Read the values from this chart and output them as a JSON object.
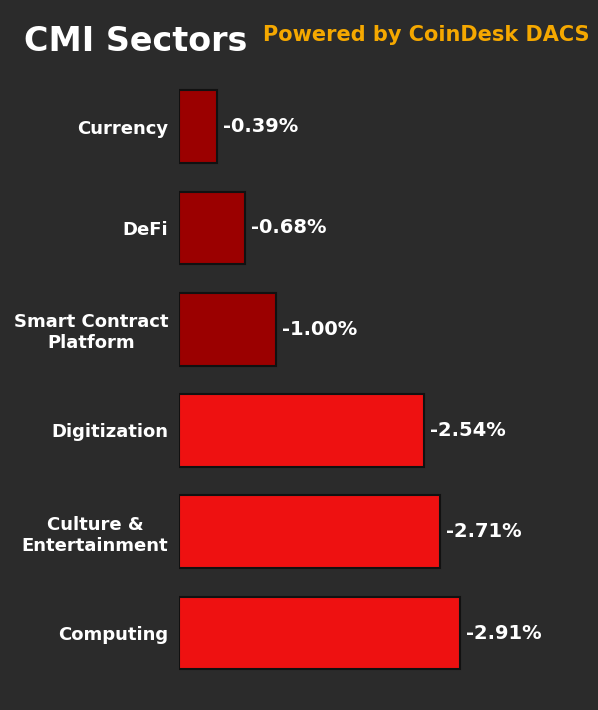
{
  "title_white": "CMI Sectors",
  "title_yellow": "Powered by CoinDesk DACS",
  "bg_color": "#2b2b2b",
  "categories": [
    "Currency",
    "DeFi",
    "Smart Contract\nPlatform",
    "Digitization",
    "Culture &\nEntertainment",
    "Computing"
  ],
  "values": [
    0.39,
    0.68,
    1.0,
    2.54,
    2.71,
    2.91
  ],
  "labels": [
    "-0.39%",
    "-0.68%",
    "-1.00%",
    "-2.54%",
    "-2.71%",
    "-2.91%"
  ],
  "bar_colors": [
    "#9b0000",
    "#9b0000",
    "#9b0000",
    "#ee1111",
    "#ee1111",
    "#ee1111"
  ],
  "bar_edge_color": "#111111",
  "text_color": "#ffffff",
  "yellow_color": "#f5a800",
  "title_fontsize": 24,
  "subtitle_fontsize": 15,
  "label_fontsize": 14,
  "category_fontsize": 13,
  "bar_height": 0.72,
  "xlim_max": 3.6
}
